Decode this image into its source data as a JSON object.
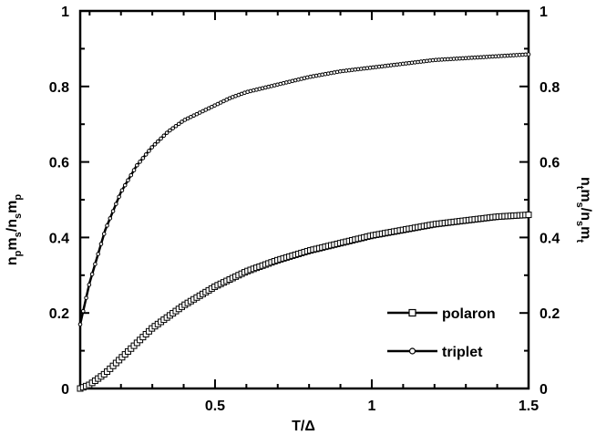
{
  "chart_data": {
    "type": "line",
    "xlabel": "T/Δ",
    "ylabel_left": "n_p m_s / n_s m_p",
    "ylabel_right": "n_t m_s / n_s m_t",
    "xlim": [
      0.07,
      1.5
    ],
    "ylim": [
      0,
      1
    ],
    "xticks": [
      "0.5",
      "1",
      "1.5"
    ],
    "yticks_left": [
      "0",
      "0.2",
      "0.4",
      "0.6",
      "0.8",
      "1"
    ],
    "yticks_right": [
      "0",
      "0.2",
      "0.4",
      "0.6",
      "0.8",
      "1"
    ],
    "legend_position": "bottom-right",
    "grid": false,
    "series": [
      {
        "name": "polaron",
        "marker": "open-square",
        "x": [
          0.07,
          0.1,
          0.15,
          0.2,
          0.25,
          0.3,
          0.35,
          0.4,
          0.45,
          0.5,
          0.55,
          0.6,
          0.7,
          0.8,
          0.9,
          1.0,
          1.1,
          1.2,
          1.3,
          1.4,
          1.5
        ],
        "y": [
          0.0,
          0.01,
          0.04,
          0.08,
          0.12,
          0.16,
          0.19,
          0.22,
          0.245,
          0.27,
          0.29,
          0.31,
          0.34,
          0.365,
          0.385,
          0.405,
          0.42,
          0.435,
          0.445,
          0.455,
          0.46
        ]
      },
      {
        "name": "triplet",
        "marker": "small-dot",
        "x": [
          0.07,
          0.1,
          0.15,
          0.2,
          0.25,
          0.3,
          0.35,
          0.4,
          0.45,
          0.5,
          0.55,
          0.6,
          0.7,
          0.8,
          0.9,
          1.0,
          1.1,
          1.2,
          1.3,
          1.4,
          1.5
        ],
        "y": [
          0.17,
          0.28,
          0.42,
          0.52,
          0.59,
          0.64,
          0.68,
          0.71,
          0.73,
          0.75,
          0.77,
          0.785,
          0.805,
          0.825,
          0.84,
          0.85,
          0.86,
          0.87,
          0.875,
          0.88,
          0.885
        ]
      }
    ]
  },
  "legend": {
    "polaron": "polaron",
    "triplet": "triplet"
  }
}
